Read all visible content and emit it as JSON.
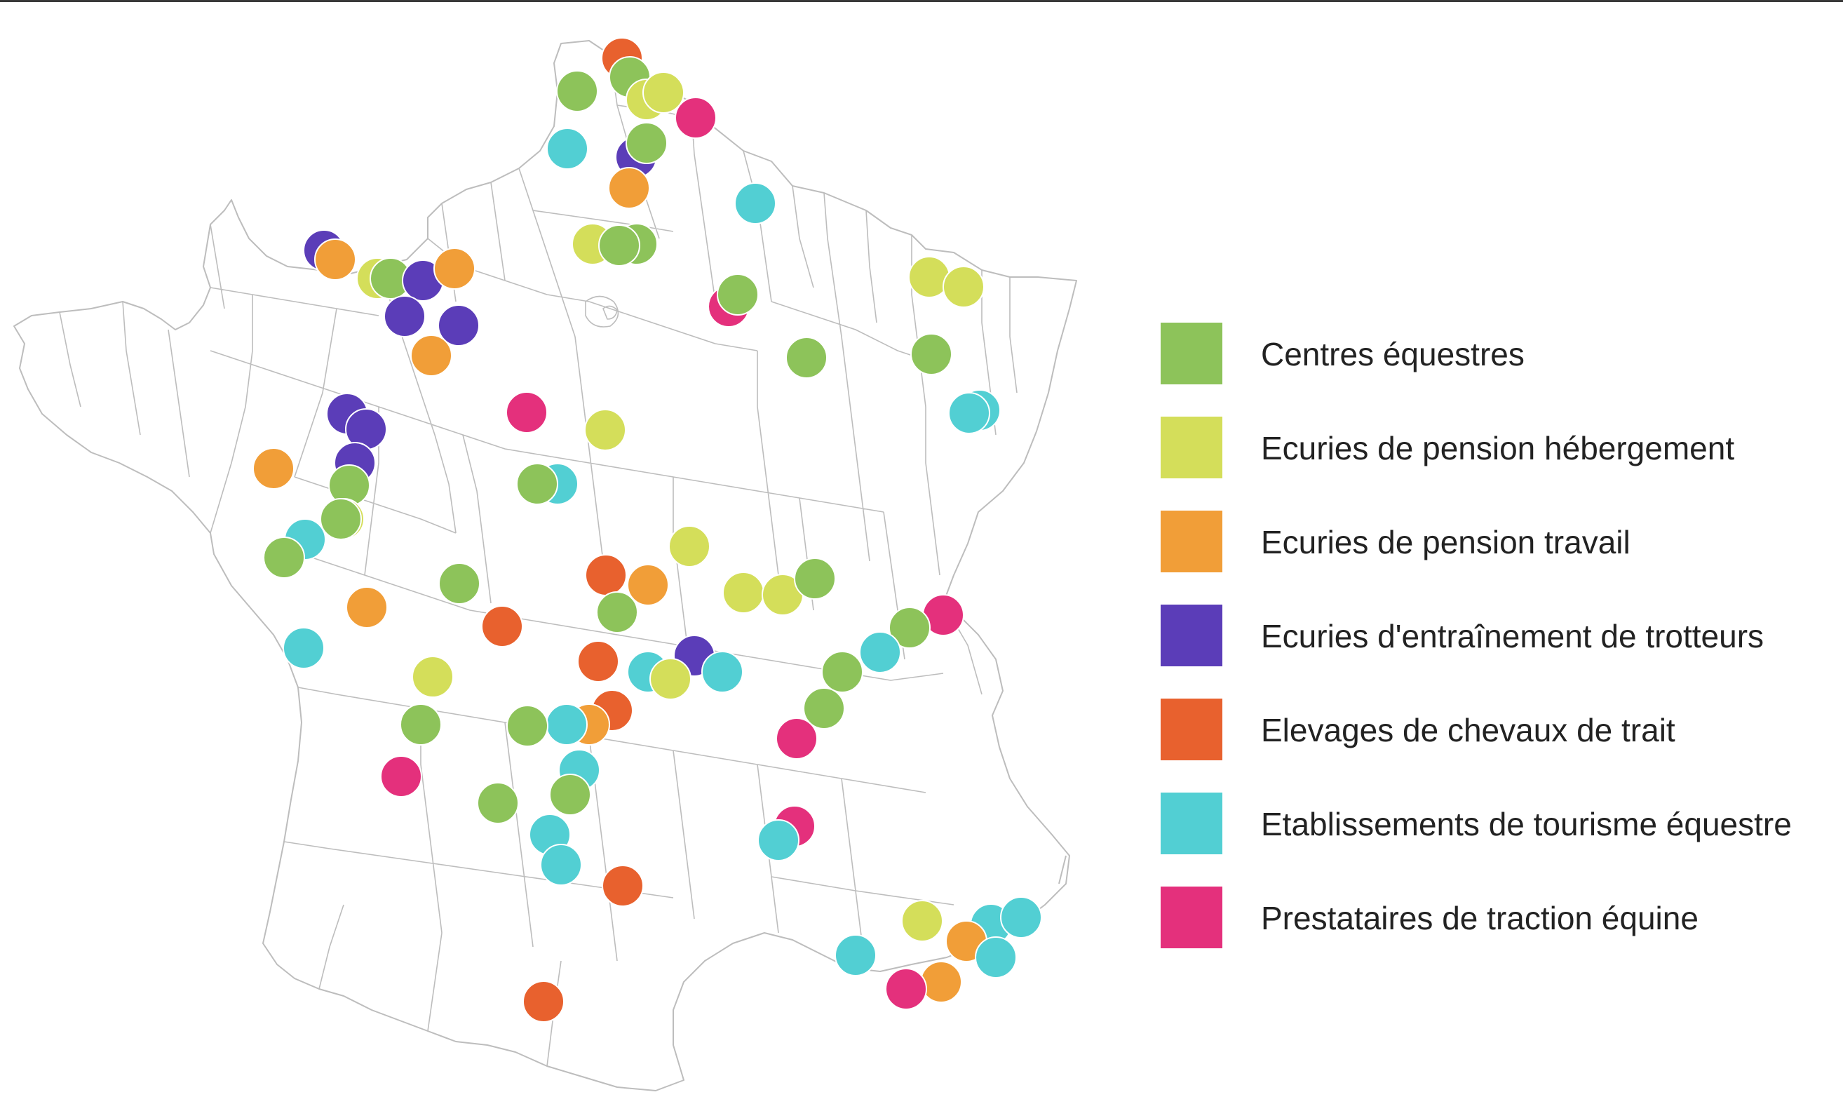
{
  "legend": {
    "items": [
      {
        "key": "centres",
        "label": "Centres équestres",
        "color": "#8DC35A"
      },
      {
        "key": "hebergement",
        "label": "Ecuries de pension hébergement",
        "color": "#D4DE5A"
      },
      {
        "key": "travail",
        "label": "Ecuries de pension travail",
        "color": "#F19E38"
      },
      {
        "key": "trotteurs",
        "label": "Ecuries d'entraînement de trotteurs",
        "color": "#5B3DB8"
      },
      {
        "key": "trait",
        "label": "Elevages de chevaux de trait",
        "color": "#E8612E"
      },
      {
        "key": "tourisme",
        "label": "Etablissements de tourisme équestre",
        "color": "#52CFD3"
      },
      {
        "key": "traction",
        "label": "Prestataires de traction équine",
        "color": "#E4307C"
      }
    ]
  },
  "map": {
    "region": "France",
    "border_color": "#BDBDBD"
  }
}
